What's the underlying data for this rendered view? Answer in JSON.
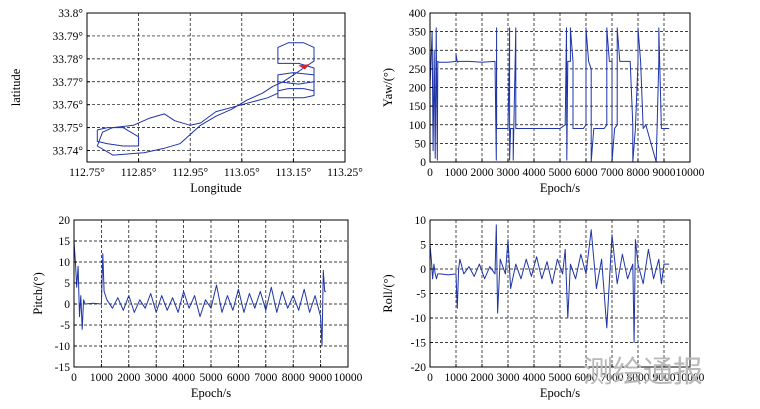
{
  "watermark": "测绘通报",
  "chart_data": [
    {
      "id": "trajectory",
      "type": "line",
      "title": "",
      "xlabel": "Longitude",
      "ylabel": "latitude",
      "xlim": [
        112.75,
        113.25
      ],
      "ylim": [
        33.735,
        33.8
      ],
      "xticks": [
        112.75,
        112.85,
        112.95,
        113.05,
        113.15,
        113.25
      ],
      "xtick_labels": [
        "112.75°",
        "112.85°",
        "112.95°",
        "113.05°",
        "113.15°",
        "113.25°"
      ],
      "yticks": [
        33.74,
        33.75,
        33.76,
        33.77,
        33.78,
        33.79,
        33.8
      ],
      "ytick_labels": [
        "33.74°",
        "33.75°",
        "33.76°",
        "33.77°",
        "33.78°",
        "33.79°",
        "33.8°"
      ],
      "grid": true,
      "series": [
        {
          "name": "track",
          "color": "#1f35a8",
          "x": [
            113.12,
            113.1,
            113.05,
            113.0,
            112.97,
            112.95,
            112.92,
            112.9,
            112.87,
            112.84,
            112.8,
            112.78,
            112.77,
            112.8,
            112.86,
            112.9,
            112.93,
            112.95,
            112.97,
            113.0,
            113.03,
            113.06,
            113.09,
            113.11,
            113.13,
            113.15,
            113.17,
            113.19,
            113.19,
            113.17,
            113.14,
            113.12,
            113.12,
            113.16,
            113.19,
            113.19,
            113.16,
            113.12,
            113.12,
            113.17,
            113.19,
            113.19,
            113.15,
            113.12,
            113.12,
            113.14,
            113.17,
            113.19
          ],
          "y": [
            33.765,
            33.763,
            33.76,
            33.757,
            33.752,
            33.751,
            33.753,
            33.756,
            33.754,
            33.751,
            33.75,
            33.748,
            33.742,
            33.738,
            33.739,
            33.741,
            33.743,
            33.747,
            33.751,
            33.755,
            33.758,
            33.762,
            33.765,
            33.768,
            33.77,
            33.773,
            33.776,
            33.779,
            33.785,
            33.787,
            33.787,
            33.785,
            33.778,
            33.778,
            33.776,
            33.77,
            33.769,
            33.77,
            33.763,
            33.763,
            33.764,
            33.773,
            33.774,
            33.773,
            33.766,
            33.767,
            33.767,
            33.766
          ]
        },
        {
          "name": "loop-west",
          "color": "#1f35a8",
          "x": [
            112.77,
            112.79,
            112.82,
            112.85,
            112.85,
            112.82,
            112.79,
            112.77,
            112.77
          ],
          "y": [
            33.749,
            33.75,
            33.75,
            33.746,
            33.742,
            33.742,
            33.743,
            33.744,
            33.749
          ]
        },
        {
          "name": "start-marker",
          "color": "#e0201c",
          "x": [
            113.17,
            113.175
          ],
          "y": [
            33.777,
            33.777
          ]
        }
      ]
    },
    {
      "id": "yaw",
      "type": "line",
      "title": "",
      "xlabel": "Epoch/s",
      "ylabel": "Yaw/(°)",
      "xlim": [
        0,
        10000
      ],
      "ylim": [
        0,
        400
      ],
      "xticks": [
        0,
        1000,
        2000,
        3000,
        4000,
        5000,
        6000,
        7000,
        8000,
        9000,
        10000
      ],
      "xtick_labels": [
        "0",
        "1000",
        "2000",
        "3000",
        "4000",
        "5000",
        "6000",
        "7000",
        "8000",
        "9000",
        "10000"
      ],
      "yticks": [
        0,
        50,
        100,
        150,
        200,
        250,
        300,
        350,
        400
      ],
      "ytick_labels": [
        "0",
        "50",
        "100",
        "150",
        "200",
        "250",
        "300",
        "350",
        "400"
      ],
      "grid": true,
      "series": [
        {
          "name": "yaw",
          "color": "#1f35a8",
          "x": [
            0,
            80,
            120,
            160,
            200,
            240,
            280,
            300,
            300,
            350,
            700,
            1000,
            1000,
            1050,
            1100,
            1500,
            2000,
            2500,
            2550,
            2560,
            2560,
            2600,
            3000,
            3050,
            3060,
            3060,
            3100,
            3200,
            3200,
            3300,
            3300,
            4000,
            4500,
            5000,
            5200,
            5250,
            5260,
            5300,
            5400,
            5400,
            5500,
            5500,
            5900,
            6000,
            6000,
            6100,
            6200,
            6200,
            6300,
            6700,
            6800,
            6800,
            6900,
            7000,
            7000,
            7100,
            7200,
            7200,
            7300,
            7700,
            7800,
            7800,
            7900,
            8000,
            8000,
            8100,
            8200,
            8200,
            8300,
            8700,
            8800,
            8800,
            8900,
            9000,
            9200
          ],
          "y": [
            200,
            350,
            30,
            300,
            10,
            360,
            5,
            270,
            270,
            268,
            268,
            270,
            290,
            268,
            270,
            270,
            268,
            270,
            5,
            360,
            90,
            90,
            90,
            265,
            360,
            5,
            90,
            90,
            5,
            360,
            90,
            90,
            90,
            90,
            100,
            360,
            5,
            270,
            270,
            360,
            270,
            90,
            90,
            100,
            360,
            270,
            250,
            0,
            90,
            90,
            100,
            360,
            270,
            270,
            0,
            90,
            100,
            360,
            270,
            270,
            100,
            0,
            90,
            270,
            360,
            270,
            90,
            90,
            100,
            0,
            270,
            360,
            90,
            90,
            90
          ]
        }
      ]
    },
    {
      "id": "pitch",
      "type": "line",
      "title": "",
      "xlabel": "Epoch/s",
      "ylabel": "Pitch/(°)",
      "xlim": [
        0,
        10000
      ],
      "ylim": [
        -15,
        20
      ],
      "xticks": [
        0,
        1000,
        2000,
        3000,
        4000,
        5000,
        6000,
        7000,
        8000,
        9000,
        10000
      ],
      "xtick_labels": [
        "0",
        "1000",
        "2000",
        "3000",
        "4000",
        "5000",
        "6000",
        "7000",
        "8000",
        "9000",
        "10000"
      ],
      "yticks": [
        -15,
        -10,
        -5,
        0,
        5,
        10,
        15,
        20
      ],
      "ytick_labels": [
        "-15",
        "-10",
        "-5",
        "0",
        "5",
        "10",
        "15",
        "20"
      ],
      "grid": true,
      "series": [
        {
          "name": "pitch",
          "color": "#1f35a8",
          "x": [
            0,
            50,
            100,
            150,
            200,
            250,
            300,
            350,
            400,
            700,
            1000,
            1050,
            1100,
            1150,
            1200,
            1400,
            1600,
            1800,
            2000,
            2200,
            2400,
            2600,
            2800,
            3000,
            3200,
            3400,
            3600,
            3800,
            4000,
            4200,
            4400,
            4600,
            4800,
            5000,
            5200,
            5400,
            5600,
            5800,
            6000,
            6200,
            6400,
            6600,
            6800,
            7000,
            7200,
            7400,
            7600,
            7800,
            8000,
            8200,
            8400,
            8600,
            8800,
            9000,
            9050,
            9100,
            9150,
            9200
          ],
          "y": [
            15,
            10,
            4,
            9,
            -3,
            2,
            -6,
            1,
            0,
            0.2,
            0,
            12,
            3,
            2,
            1,
            -1,
            1.5,
            -1.5,
            2,
            -2,
            1,
            -1,
            2.5,
            -2,
            2,
            -1.5,
            1.5,
            -2,
            3,
            -1,
            2,
            -3,
            1,
            -1,
            4.5,
            -2,
            2,
            -1.5,
            3.5,
            -2,
            2.5,
            -1,
            3,
            -1.5,
            4,
            -2,
            3,
            -1,
            2,
            -1.5,
            3.5,
            -2,
            2,
            -3,
            -10,
            8,
            3,
            3
          ]
        }
      ]
    },
    {
      "id": "roll",
      "type": "line",
      "title": "",
      "xlabel": "Epoch/s",
      "ylabel": "Roll/(°)",
      "xlim": [
        0,
        10000
      ],
      "ylim": [
        -20,
        10
      ],
      "xticks": [
        0,
        1000,
        2000,
        3000,
        4000,
        5000,
        6000,
        7000,
        8000,
        9000,
        10000
      ],
      "xtick_labels": [
        "0",
        "1000",
        "2000",
        "3000",
        "4000",
        "5000",
        "6000",
        "7000",
        "8000",
        "9000",
        "10000"
      ],
      "yticks": [
        -20,
        -15,
        -10,
        -5,
        0,
        5,
        10
      ],
      "ytick_labels": [
        "-20",
        "-15",
        "-10",
        "-5",
        "0",
        "5",
        "10"
      ],
      "grid": true,
      "series": [
        {
          "name": "roll",
          "color": "#1f35a8",
          "x": [
            0,
            50,
            100,
            150,
            200,
            250,
            300,
            400,
            700,
            1000,
            1050,
            1100,
            1150,
            1300,
            1500,
            1700,
            1900,
            2100,
            2300,
            2500,
            2550,
            2600,
            2700,
            2900,
            3000,
            3100,
            3300,
            3500,
            3700,
            3900,
            4100,
            4300,
            4500,
            4700,
            4900,
            5100,
            5200,
            5300,
            5400,
            5600,
            5800,
            6000,
            6200,
            6400,
            6600,
            6800,
            7000,
            7200,
            7400,
            7600,
            7800,
            7850,
            7900,
            8000,
            8200,
            8400,
            8600,
            8800,
            8900,
            9000,
            9200
          ],
          "y": [
            5,
            2,
            -2,
            1,
            -1,
            -2,
            -1,
            -1,
            -1.2,
            -1,
            -8,
            0,
            2,
            -1,
            0.5,
            -1.5,
            1,
            -2,
            0.5,
            -1,
            9,
            -9,
            2,
            -1,
            6,
            -4,
            1,
            -2,
            2,
            -1.5,
            2.5,
            -2,
            1.5,
            -3,
            2,
            -1,
            4,
            -10,
            1,
            -2,
            3,
            -1,
            8,
            -4,
            2,
            -12,
            7,
            -3,
            3,
            -2,
            1,
            -15,
            6,
            1,
            -3,
            4,
            -2,
            2,
            -3,
            1,
            1
          ]
        }
      ]
    }
  ]
}
